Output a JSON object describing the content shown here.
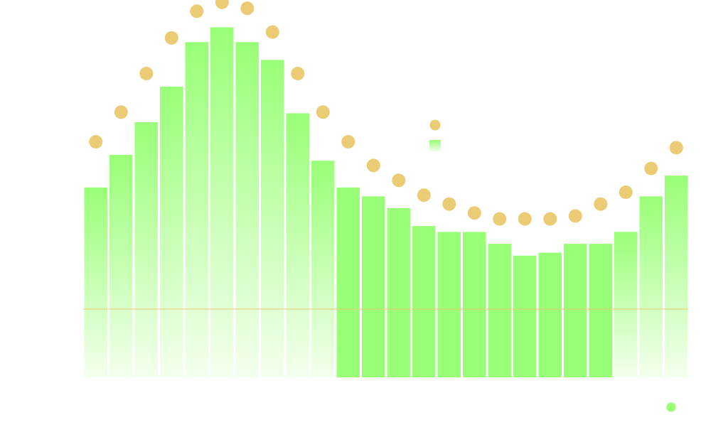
{
  "chart_data": {
    "type": "bar",
    "title": "",
    "xlabel": "",
    "ylabel": "",
    "ylim": [
      0,
      120
    ],
    "grid": false,
    "legend": {
      "placement": "upper-center",
      "entries": [
        {
          "marker": "circle",
          "color": "#EBCB74",
          "label": ""
        },
        {
          "marker": "square",
          "color": "#99FF77",
          "label": ""
        }
      ]
    },
    "reference_line": {
      "value": 23,
      "color": "#EBCB74"
    },
    "categories": [
      "",
      "",
      "",
      "",
      "",
      "",
      "",
      "",
      "",
      "",
      "",
      "",
      "",
      "",
      "",
      "",
      "",
      "",
      "",
      "",
      "",
      "",
      "",
      ""
    ],
    "series": [
      {
        "kind": "bar",
        "color": "#99FF77",
        "values": [
          64,
          75,
          86,
          98,
          113,
          118,
          113,
          107,
          89,
          73,
          64,
          61,
          57,
          51,
          49,
          49,
          45,
          41,
          42,
          45,
          45,
          49,
          61,
          68
        ]
      },
      {
        "kind": "scatter",
        "color": "#EBCB74",
        "values": [
          77,
          87,
          100,
          112,
          121,
          124,
          122,
          114,
          100,
          87,
          77,
          69,
          64,
          59,
          56,
          53,
          51,
          51,
          51,
          52,
          56,
          60,
          68,
          75
        ]
      }
    ],
    "bar_fill": {
      "colors": [
        "#99FF77",
        "#F4FFEE"
      ],
      "gradient_bars": [
        0,
        1,
        2,
        3,
        4,
        5,
        6,
        7,
        8,
        9,
        21,
        22,
        23
      ]
    },
    "corner_marker": {
      "color": "#99FF77"
    }
  }
}
